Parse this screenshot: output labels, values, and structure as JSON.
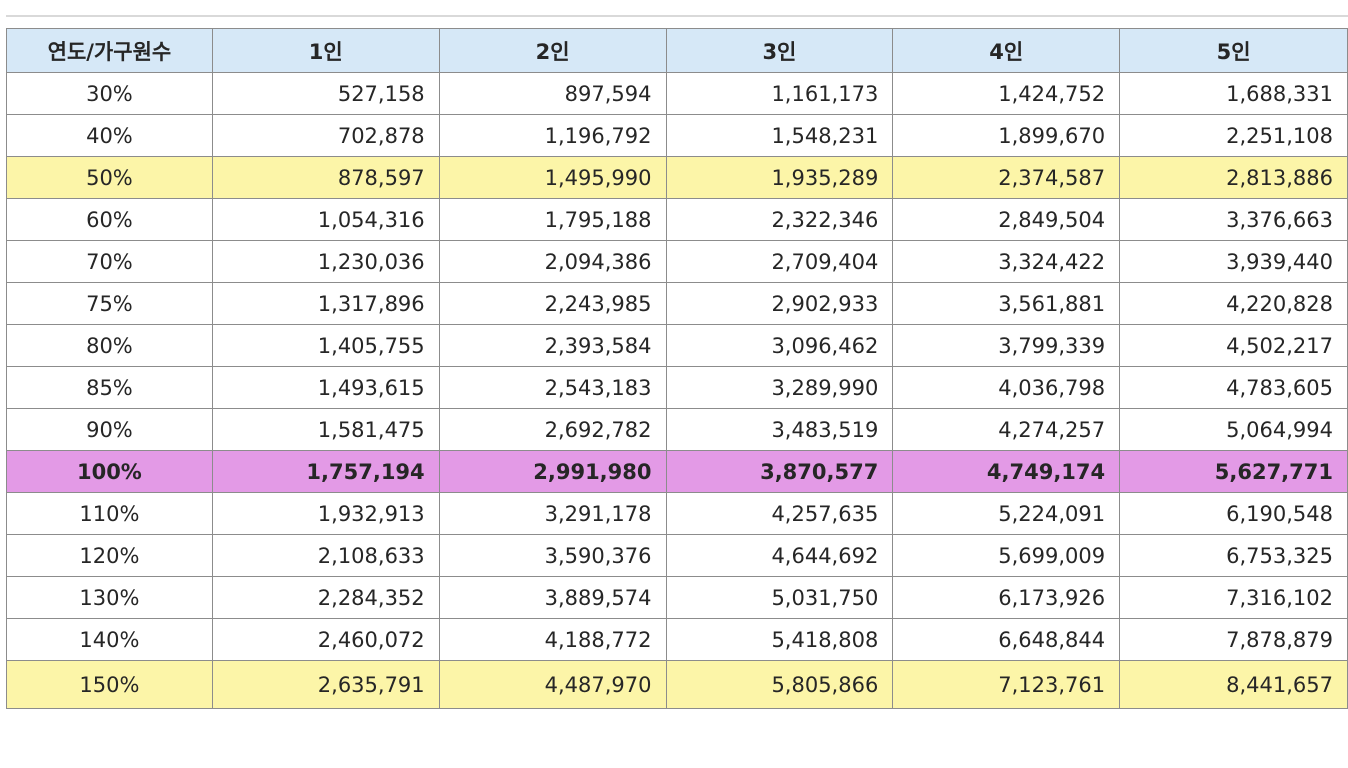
{
  "table": {
    "headers": [
      "연도/가구원수",
      "1인",
      "2인",
      "3인",
      "4인",
      "5인"
    ],
    "rows": [
      {
        "label": "30%",
        "values": [
          "527,158",
          "897,594",
          "1,161,173",
          "1,424,752",
          "1,688,331"
        ],
        "highlight": "none"
      },
      {
        "label": "40%",
        "values": [
          "702,878",
          "1,196,792",
          "1,548,231",
          "1,899,670",
          "2,251,108"
        ],
        "highlight": "none"
      },
      {
        "label": "50%",
        "values": [
          "878,597",
          "1,495,990",
          "1,935,289",
          "2,374,587",
          "2,813,886"
        ],
        "highlight": "yellow"
      },
      {
        "label": "60%",
        "values": [
          "1,054,316",
          "1,795,188",
          "2,322,346",
          "2,849,504",
          "3,376,663"
        ],
        "highlight": "none"
      },
      {
        "label": "70%",
        "values": [
          "1,230,036",
          "2,094,386",
          "2,709,404",
          "3,324,422",
          "3,939,440"
        ],
        "highlight": "none"
      },
      {
        "label": "75%",
        "values": [
          "1,317,896",
          "2,243,985",
          "2,902,933",
          "3,561,881",
          "4,220,828"
        ],
        "highlight": "none"
      },
      {
        "label": "80%",
        "values": [
          "1,405,755",
          "2,393,584",
          "3,096,462",
          "3,799,339",
          "4,502,217"
        ],
        "highlight": "none"
      },
      {
        "label": "85%",
        "values": [
          "1,493,615",
          "2,543,183",
          "3,289,990",
          "4,036,798",
          "4,783,605"
        ],
        "highlight": "none"
      },
      {
        "label": "90%",
        "values": [
          "1,581,475",
          "2,692,782",
          "3,483,519",
          "4,274,257",
          "5,064,994"
        ],
        "highlight": "none"
      },
      {
        "label": "100%",
        "values": [
          "1,757,194",
          "2,991,980",
          "3,870,577",
          "4,749,174",
          "5,627,771"
        ],
        "highlight": "pink"
      },
      {
        "label": "110%",
        "values": [
          "1,932,913",
          "3,291,178",
          "4,257,635",
          "5,224,091",
          "6,190,548"
        ],
        "highlight": "none"
      },
      {
        "label": "120%",
        "values": [
          "2,108,633",
          "3,590,376",
          "4,644,692",
          "5,699,009",
          "6,753,325"
        ],
        "highlight": "none"
      },
      {
        "label": "130%",
        "values": [
          "2,284,352",
          "3,889,574",
          "5,031,750",
          "6,173,926",
          "7,316,102"
        ],
        "highlight": "none"
      },
      {
        "label": "140%",
        "values": [
          "2,460,072",
          "4,188,772",
          "5,418,808",
          "6,648,844",
          "7,878,879"
        ],
        "highlight": "none"
      },
      {
        "label": "150%",
        "values": [
          "2,635,791",
          "4,487,970",
          "5,805,866",
          "7,123,761",
          "8,441,657"
        ],
        "highlight": "yellow"
      }
    ]
  },
  "colors": {
    "header_bg": "#d6e8f7",
    "highlight_yellow": "#fcf5a8",
    "highlight_pink": "#e39ae6",
    "border": "#8c8c8c"
  }
}
